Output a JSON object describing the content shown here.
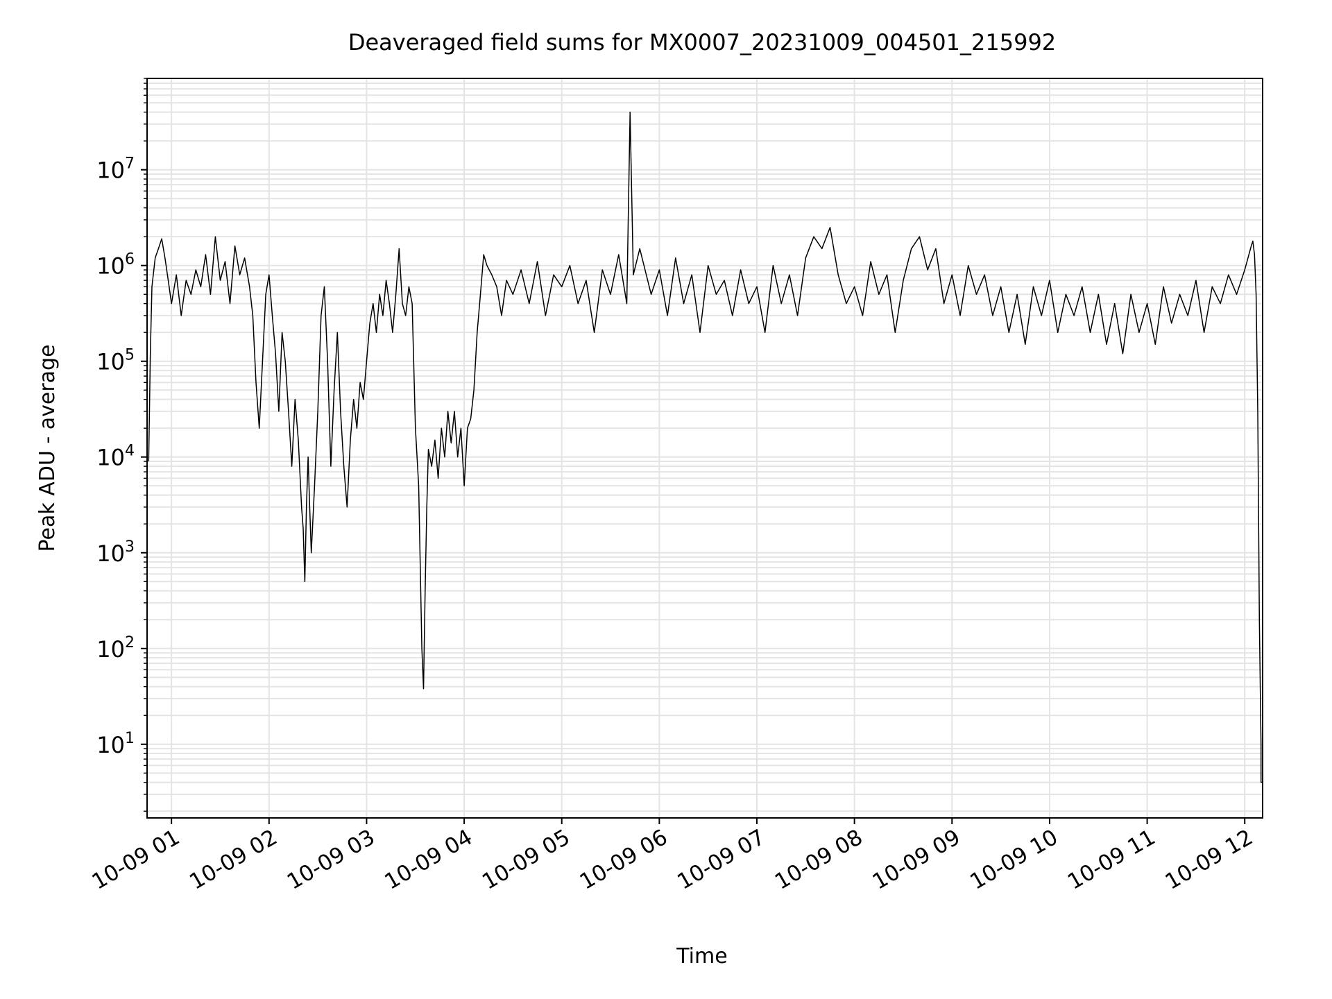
{
  "chart_data": {
    "type": "line",
    "title": "Deaveraged field sums for MX0007_20231009_004501_215992",
    "xlabel": "Time",
    "ylabel": "Peak ADU - average",
    "yscale": "log",
    "grid": true,
    "x_ticks": [
      "10-09 01",
      "10-09 02",
      "10-09 03",
      "10-09 04",
      "10-09 05",
      "10-09 06",
      "10-09 07",
      "10-09 08",
      "10-09 09",
      "10-09 10",
      "10-09 11",
      "10-09 12"
    ],
    "xlim": [
      "10-09 00:45",
      "10-09 12:11"
    ],
    "ylim": [
      1.7,
      90000000.0
    ],
    "y_tick_values": [
      10,
      100,
      1000,
      10000,
      100000,
      1000000,
      10000000
    ],
    "y_tick_bases": [
      "10",
      "10",
      "10",
      "10",
      "10",
      "10",
      "10"
    ],
    "y_tick_exponents": [
      "1",
      "2",
      "3",
      "4",
      "5",
      "6",
      "7"
    ],
    "series": [
      {
        "color": "#000000",
        "points": [
          [
            "00:46",
            9000.0
          ],
          [
            "00:47",
            120000.0
          ],
          [
            "00:48",
            600000.0
          ],
          [
            "00:50",
            1200000.0
          ],
          [
            "00:52",
            1500000.0
          ],
          [
            "00:54",
            1900000.0
          ],
          [
            "00:56",
            1200000.0
          ],
          [
            "00:58",
            700000.0
          ],
          [
            "01:00",
            400000.0
          ],
          [
            "01:03",
            800000.0
          ],
          [
            "01:06",
            300000.0
          ],
          [
            "01:09",
            700000.0
          ],
          [
            "01:12",
            500000.0
          ],
          [
            "01:15",
            900000.0
          ],
          [
            "01:18",
            600000.0
          ],
          [
            "01:21",
            1300000.0
          ],
          [
            "01:24",
            500000.0
          ],
          [
            "01:27",
            2000000.0
          ],
          [
            "01:30",
            700000.0
          ],
          [
            "01:33",
            1100000.0
          ],
          [
            "01:36",
            400000.0
          ],
          [
            "01:39",
            1600000.0
          ],
          [
            "01:42",
            800000.0
          ],
          [
            "01:45",
            1200000.0
          ],
          [
            "01:48",
            600000.0
          ],
          [
            "01:50",
            300000.0
          ],
          [
            "01:52",
            60000.0
          ],
          [
            "01:54",
            20000.0
          ],
          [
            "01:56",
            100000.0
          ],
          [
            "01:58",
            500000.0
          ],
          [
            "02:00",
            800000.0
          ],
          [
            "02:02",
            300000.0
          ],
          [
            "02:04",
            120000.0
          ],
          [
            "02:06",
            30000.0
          ],
          [
            "02:08",
            200000.0
          ],
          [
            "02:10",
            100000.0
          ],
          [
            "02:12",
            30000.0
          ],
          [
            "02:14",
            8000.0
          ],
          [
            "02:16",
            40000.0
          ],
          [
            "02:18",
            15000.0
          ],
          [
            "02:20",
            3000.0
          ],
          [
            "02:21",
            1800.0
          ],
          [
            "02:22",
            500
          ],
          [
            "02:23",
            3000.0
          ],
          [
            "02:24",
            10000.0
          ],
          [
            "02:25",
            3000.0
          ],
          [
            "02:26",
            1000.0
          ],
          [
            "02:28",
            5000.0
          ],
          [
            "02:30",
            30000.0
          ],
          [
            "02:32",
            300000.0
          ],
          [
            "02:34",
            600000.0
          ],
          [
            "02:36",
            100000.0
          ],
          [
            "02:38",
            8000.0
          ],
          [
            "02:40",
            50000.0
          ],
          [
            "02:42",
            200000.0
          ],
          [
            "02:44",
            30000.0
          ],
          [
            "02:46",
            8000.0
          ],
          [
            "02:48",
            3000.0
          ],
          [
            "02:50",
            15000.0
          ],
          [
            "02:52",
            40000.0
          ],
          [
            "02:54",
            20000.0
          ],
          [
            "02:56",
            60000.0
          ],
          [
            "02:58",
            40000.0
          ],
          [
            "03:00",
            100000.0
          ],
          [
            "03:02",
            250000.0
          ],
          [
            "03:04",
            400000.0
          ],
          [
            "03:06",
            200000.0
          ],
          [
            "03:08",
            500000.0
          ],
          [
            "03:10",
            300000.0
          ],
          [
            "03:12",
            700000.0
          ],
          [
            "03:14",
            400000.0
          ],
          [
            "03:16",
            200000.0
          ],
          [
            "03:18",
            500000.0
          ],
          [
            "03:20",
            1500000.0
          ],
          [
            "03:22",
            400000.0
          ],
          [
            "03:24",
            300000.0
          ],
          [
            "03:26",
            600000.0
          ],
          [
            "03:28",
            400000.0
          ],
          [
            "03:30",
            20000.0
          ],
          [
            "03:32",
            5000.0
          ],
          [
            "03:33",
            700
          ],
          [
            "03:34",
            100
          ],
          [
            "03:35",
            38
          ],
          [
            "03:36",
            400
          ],
          [
            "03:37",
            3000.0
          ],
          [
            "03:38",
            12000.0
          ],
          [
            "03:40",
            8000.0
          ],
          [
            "03:42",
            15000.0
          ],
          [
            "03:44",
            6000.0
          ],
          [
            "03:46",
            20000.0
          ],
          [
            "03:48",
            10000.0
          ],
          [
            "03:50",
            30000.0
          ],
          [
            "03:52",
            14000.0
          ],
          [
            "03:54",
            30000.0
          ],
          [
            "03:56",
            10000.0
          ],
          [
            "03:58",
            20000.0
          ],
          [
            "04:00",
            5000.0
          ],
          [
            "04:02",
            20000.0
          ],
          [
            "04:04",
            25000.0
          ],
          [
            "04:06",
            50000.0
          ],
          [
            "04:08",
            200000.0
          ],
          [
            "04:10",
            500000.0
          ],
          [
            "04:12",
            1300000.0
          ],
          [
            "04:14",
            1000000.0
          ],
          [
            "04:17",
            800000.0
          ],
          [
            "04:20",
            600000.0
          ],
          [
            "04:23",
            300000.0
          ],
          [
            "04:26",
            700000.0
          ],
          [
            "04:30",
            500000.0
          ],
          [
            "04:35",
            900000.0
          ],
          [
            "04:40",
            400000.0
          ],
          [
            "04:45",
            1100000.0
          ],
          [
            "04:50",
            300000.0
          ],
          [
            "04:55",
            800000.0
          ],
          [
            "05:00",
            600000.0
          ],
          [
            "05:05",
            1000000.0
          ],
          [
            "05:10",
            400000.0
          ],
          [
            "05:15",
            700000.0
          ],
          [
            "05:20",
            200000.0
          ],
          [
            "05:25",
            900000.0
          ],
          [
            "05:30",
            500000.0
          ],
          [
            "05:35",
            1300000.0
          ],
          [
            "05:40",
            400000.0
          ],
          [
            "05:42",
            40000000.0
          ],
          [
            "05:44",
            800000.0
          ],
          [
            "05:48",
            1500000.0
          ],
          [
            "05:55",
            500000.0
          ],
          [
            "06:00",
            900000.0
          ],
          [
            "06:05",
            300000.0
          ],
          [
            "06:10",
            1200000.0
          ],
          [
            "06:15",
            400000.0
          ],
          [
            "06:20",
            800000.0
          ],
          [
            "06:25",
            200000.0
          ],
          [
            "06:30",
            1000000.0
          ],
          [
            "06:35",
            500000.0
          ],
          [
            "06:40",
            700000.0
          ],
          [
            "06:45",
            300000.0
          ],
          [
            "06:50",
            900000.0
          ],
          [
            "06:55",
            400000.0
          ],
          [
            "07:00",
            600000.0
          ],
          [
            "07:05",
            200000.0
          ],
          [
            "07:10",
            1000000.0
          ],
          [
            "07:15",
            400000.0
          ],
          [
            "07:20",
            800000.0
          ],
          [
            "07:25",
            300000.0
          ],
          [
            "07:30",
            1200000.0
          ],
          [
            "07:35",
            2000000.0
          ],
          [
            "07:40",
            1500000.0
          ],
          [
            "07:45",
            2500000.0
          ],
          [
            "07:50",
            800000.0
          ],
          [
            "07:55",
            400000.0
          ],
          [
            "08:00",
            600000.0
          ],
          [
            "08:05",
            300000.0
          ],
          [
            "08:10",
            1100000.0
          ],
          [
            "08:15",
            500000.0
          ],
          [
            "08:20",
            800000.0
          ],
          [
            "08:25",
            200000.0
          ],
          [
            "08:30",
            700000.0
          ],
          [
            "08:35",
            1500000.0
          ],
          [
            "08:40",
            2000000.0
          ],
          [
            "08:45",
            900000.0
          ],
          [
            "08:50",
            1500000.0
          ],
          [
            "08:55",
            400000.0
          ],
          [
            "09:00",
            800000.0
          ],
          [
            "09:05",
            300000.0
          ],
          [
            "09:10",
            1000000.0
          ],
          [
            "09:15",
            500000.0
          ],
          [
            "09:20",
            800000.0
          ],
          [
            "09:25",
            300000.0
          ],
          [
            "09:30",
            600000.0
          ],
          [
            "09:35",
            200000.0
          ],
          [
            "09:40",
            500000.0
          ],
          [
            "09:45",
            150000.0
          ],
          [
            "09:50",
            600000.0
          ],
          [
            "09:55",
            300000.0
          ],
          [
            "10:00",
            700000.0
          ],
          [
            "10:05",
            200000.0
          ],
          [
            "10:10",
            500000.0
          ],
          [
            "10:15",
            300000.0
          ],
          [
            "10:20",
            600000.0
          ],
          [
            "10:25",
            200000.0
          ],
          [
            "10:30",
            500000.0
          ],
          [
            "10:35",
            150000.0
          ],
          [
            "10:40",
            400000.0
          ],
          [
            "10:45",
            120000.0
          ],
          [
            "10:50",
            500000.0
          ],
          [
            "10:55",
            200000.0
          ],
          [
            "11:00",
            400000.0
          ],
          [
            "11:05",
            150000.0
          ],
          [
            "11:10",
            600000.0
          ],
          [
            "11:15",
            250000.0
          ],
          [
            "11:20",
            500000.0
          ],
          [
            "11:25",
            300000.0
          ],
          [
            "11:30",
            700000.0
          ],
          [
            "11:35",
            200000.0
          ],
          [
            "11:40",
            600000.0
          ],
          [
            "11:45",
            400000.0
          ],
          [
            "11:50",
            800000.0
          ],
          [
            "11:55",
            500000.0
          ],
          [
            "12:00",
            900000.0
          ],
          [
            "12:02",
            1200000.0
          ],
          [
            "12:04",
            1600000.0
          ],
          [
            "12:05",
            1800000.0
          ],
          [
            "12:06",
            1300000.0
          ],
          [
            "12:07",
            500000.0
          ],
          [
            "12:08",
            30000.0
          ],
          [
            "12:09",
            200
          ],
          [
            "12:10",
            10
          ],
          [
            "12:10",
            4
          ],
          [
            "12:11",
            4
          ]
        ]
      }
    ]
  }
}
